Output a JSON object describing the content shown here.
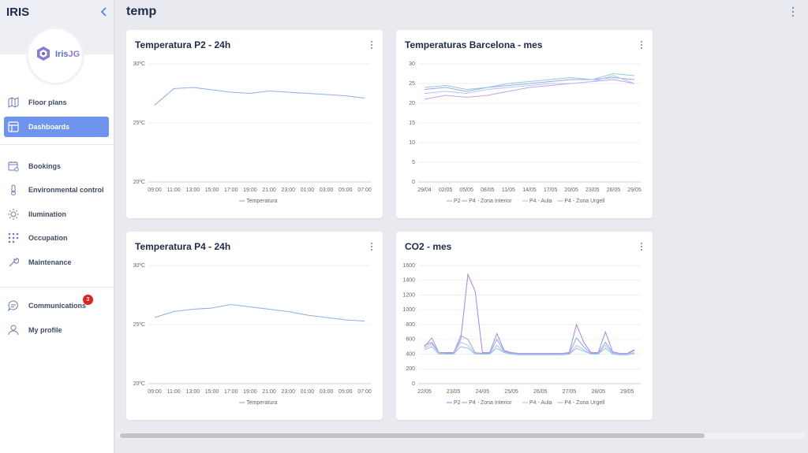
{
  "header": {
    "title": "temp"
  },
  "sidebar": {
    "brand": "IRIS",
    "logo": [
      "Iris",
      "JG"
    ],
    "nav": [
      {
        "label": "Floor plans"
      },
      {
        "label": "Dashboards",
        "active": true
      },
      {
        "label": "Bookings"
      },
      {
        "label": "Environmental control"
      },
      {
        "label": "Ilumination"
      },
      {
        "label": "Occupation"
      },
      {
        "label": "Maintenance"
      },
      {
        "label": "Communications",
        "badge": 3
      },
      {
        "label": "My profile"
      }
    ]
  },
  "cards": [
    {
      "title": "Temperatura P2 - 24h",
      "chart": {
        "type": "line",
        "categories": [
          "09:00",
          "11:00",
          "13:00",
          "15:00",
          "17:00",
          "19:00",
          "21:00",
          "23:00",
          "01:00",
          "03:00",
          "05:00",
          "07:00"
        ],
        "series": [
          {
            "name": "Temperatura",
            "color": "#8fb0e6",
            "values": [
              26.5,
              27.9,
              28.0,
              27.8,
              27.6,
              27.5,
              27.7,
              27.6,
              27.5,
              27.4,
              27.3,
              27.1
            ]
          }
        ],
        "ylim": [
          20,
          30
        ],
        "yticks": [
          {
            "value": 20,
            "label": "20ºC"
          },
          {
            "value": 25,
            "label": "25ºC"
          },
          {
            "value": 30,
            "label": "30ºC"
          }
        ],
        "grid": true
      }
    },
    {
      "title": "Temperaturas Barcelona - mes",
      "chart": {
        "type": "line",
        "categories": [
          "29/04",
          "02/05",
          "05/05",
          "08/05",
          "11/05",
          "14/05",
          "17/05",
          "20/05",
          "23/05",
          "26/05",
          "29/05"
        ],
        "series": [
          {
            "name": "P2",
            "color": "#c9a2e8",
            "values": [
              21,
              22,
              21.5,
              22,
              23,
              24,
              24.5,
              25,
              25.5,
              26,
              25
            ]
          },
          {
            "name": "P4 - Zona Interior",
            "color": "#8fb0e6",
            "values": [
              23.5,
              24,
              23,
              24,
              24.5,
              25,
              25.5,
              26,
              26,
              26.5,
              26
            ]
          },
          {
            "name": "P4 - Aula",
            "color": "#b4c6ee",
            "values": [
              22.5,
              23,
              22.5,
              23.5,
              24,
              24.5,
              25,
              25,
              25.5,
              27,
              25
            ]
          },
          {
            "name": "P4 - Zona Urgell",
            "color": "#9dc3e0",
            "values": [
              24,
              24.5,
              23.5,
              24,
              25,
              25.5,
              26,
              26.5,
              26,
              27.5,
              27
            ]
          }
        ],
        "ylim": [
          0,
          30
        ],
        "yticks": [
          0,
          5,
          10,
          15,
          20,
          25,
          30
        ],
        "grid": true
      }
    },
    {
      "title": "Temperatura P4 - 24h",
      "chart": {
        "type": "line",
        "categories": [
          "09:00",
          "11:00",
          "13:00",
          "15:00",
          "17:00",
          "19:00",
          "21:00",
          "23:00",
          "01:00",
          "03:00",
          "05:00",
          "07:00"
        ],
        "series": [
          {
            "name": "Temperatura",
            "color": "#8fb0e6",
            "values": [
              25.6,
              26.1,
              26.3,
              26.4,
              26.7,
              26.5,
              26.3,
              26.1,
              25.8,
              25.6,
              25.4,
              25.3
            ]
          }
        ],
        "ylim": [
          20,
          30
        ],
        "yticks": [
          {
            "value": 20,
            "label": "20ºC"
          },
          {
            "value": 25,
            "label": "25ºC"
          },
          {
            "value": 30,
            "label": "30ºC"
          }
        ],
        "grid": true
      }
    },
    {
      "title": "CO2 - mes",
      "chart": {
        "type": "line",
        "categories": [
          "22/05",
          null,
          null,
          null,
          "23/05",
          null,
          null,
          null,
          "24/05",
          null,
          null,
          null,
          "25/05",
          null,
          null,
          null,
          "26/05",
          null,
          null,
          null,
          "27/05",
          null,
          null,
          null,
          "28/05",
          null,
          null,
          null,
          "29/05",
          null
        ],
        "series": [
          {
            "name": "P2",
            "color": "#b48be6",
            "values": [
              520,
              560,
              420,
              420,
              420,
              600,
              1480,
              1250,
              420,
              420,
              680,
              450,
              420,
              410,
              410,
              410,
              410,
              410,
              410,
              410,
              420,
              800,
              560,
              420,
              420,
              700,
              430,
              410,
              410,
              460
            ]
          },
          {
            "name": "P4 - Zona Interior",
            "color": "#8fb0e6",
            "values": [
              500,
              620,
              420,
              410,
              410,
              650,
              600,
              420,
              410,
              410,
              600,
              440,
              410,
              400,
              400,
              400,
              400,
              400,
              400,
              400,
              410,
              620,
              500,
              410,
              410,
              560,
              420,
              400,
              400,
              450
            ]
          },
          {
            "name": "P4 - Aula",
            "color": "#b4c6ee",
            "values": [
              480,
              540,
              410,
              400,
              400,
              560,
              520,
              410,
              400,
              400,
              520,
              430,
              400,
              400,
              400,
              400,
              400,
              400,
              400,
              400,
              400,
              520,
              460,
              400,
              400,
              520,
              410,
              400,
              400,
              420
            ]
          },
          {
            "name": "P4 - Zona Urgell",
            "color": "#9dc3e0",
            "values": [
              460,
              500,
              400,
              400,
              400,
              500,
              480,
              400,
              400,
              400,
              480,
              420,
              400,
              390,
              390,
              390,
              390,
              390,
              390,
              390,
              400,
              480,
              440,
              400,
              400,
              480,
              400,
              390,
              390,
              410
            ]
          }
        ],
        "ylim": [
          0,
          1600
        ],
        "yticks": [
          0,
          200,
          400,
          600,
          800,
          1000,
          1200,
          1400,
          1600
        ],
        "grid": true
      }
    }
  ]
}
